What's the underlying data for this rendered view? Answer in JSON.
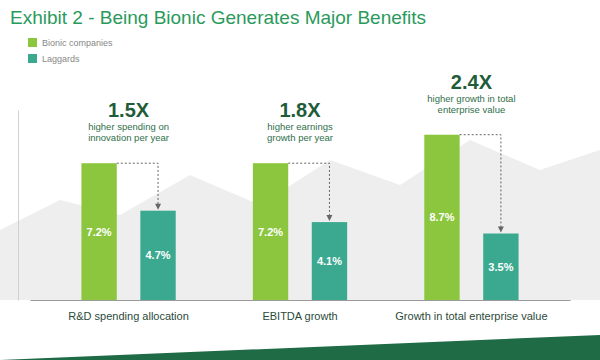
{
  "chart_data": {
    "type": "bar",
    "title": "Exhibit 2 - Being Bionic Generates Major Benefits",
    "categories": [
      "R&D spending allocation",
      "EBITDA growth",
      "Growth in total enterprise value"
    ],
    "series": [
      {
        "name": "Bionic companies",
        "color": "#8cc63f",
        "values": [
          7.2,
          7.2,
          8.7
        ],
        "value_labels": [
          "7.2%",
          "7.2%",
          "8.7%"
        ]
      },
      {
        "name": "Laggards",
        "color": "#3aa98f",
        "values": [
          4.7,
          4.1,
          3.5
        ],
        "value_labels": [
          "4.7%",
          "4.1%",
          "3.5%"
        ]
      }
    ],
    "ylim": [
      0,
      10
    ],
    "data_labels": true,
    "tick_labels": "x",
    "legend": "top-left",
    "annotations": [
      {
        "label": "1.5X",
        "text": [
          "higher spending on",
          "innovation per year"
        ]
      },
      {
        "label": "1.8X",
        "text": [
          "higher earnings",
          "growth per year"
        ]
      },
      {
        "label": "2.4X",
        "text": [
          "higher growth in total",
          "enterprise value"
        ]
      }
    ]
  }
}
